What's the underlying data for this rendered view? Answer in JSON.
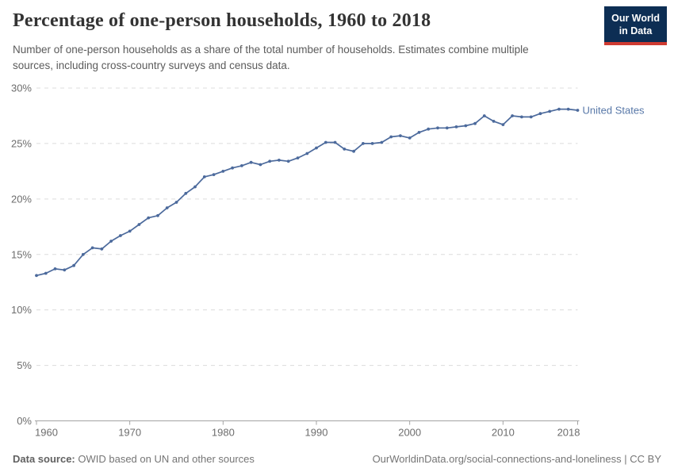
{
  "header": {
    "title": "Percentage of one-person households, 1960 to 2018",
    "subtitle": "Number of one-person households as a share of the total number of households. Estimates combine multiple sources, including cross-country surveys and census data.",
    "logo": {
      "line1": "Our World",
      "line2": "in Data"
    }
  },
  "chart_data": {
    "type": "line",
    "title": "Percentage of one-person households, 1960 to 2018",
    "xlabel": "",
    "ylabel": "",
    "ylim": [
      0,
      30
    ],
    "yticks": [
      0,
      5,
      10,
      15,
      20,
      25,
      30
    ],
    "ytick_suffix": "%",
    "xticks": [
      1960,
      1970,
      1980,
      1990,
      2000,
      2010,
      2018
    ],
    "xlim": [
      1960,
      2018
    ],
    "grid": "dashed-horizontal",
    "legend": "end-of-line-label",
    "series": [
      {
        "name": "United States",
        "color": "#4C6A9C",
        "label_color": "#5878a8",
        "x": [
          1960,
          1961,
          1962,
          1963,
          1964,
          1965,
          1966,
          1967,
          1968,
          1969,
          1970,
          1971,
          1972,
          1973,
          1974,
          1975,
          1976,
          1977,
          1978,
          1979,
          1980,
          1981,
          1982,
          1983,
          1984,
          1985,
          1986,
          1987,
          1988,
          1989,
          1990,
          1991,
          1992,
          1993,
          1994,
          1995,
          1996,
          1997,
          1998,
          1999,
          2000,
          2001,
          2002,
          2003,
          2004,
          2005,
          2006,
          2007,
          2008,
          2009,
          2010,
          2011,
          2012,
          2013,
          2014,
          2015,
          2016,
          2017,
          2018
        ],
        "values": [
          13.1,
          13.3,
          13.7,
          13.6,
          14.0,
          15.0,
          15.6,
          15.5,
          16.2,
          16.7,
          17.1,
          17.7,
          18.3,
          18.5,
          19.2,
          19.7,
          20.5,
          21.1,
          22.0,
          22.2,
          22.5,
          22.8,
          23.0,
          23.3,
          23.1,
          23.4,
          23.5,
          23.4,
          23.7,
          24.1,
          24.6,
          25.1,
          25.1,
          24.5,
          24.3,
          25.0,
          25.0,
          25.1,
          25.6,
          25.7,
          25.5,
          26.0,
          26.3,
          26.4,
          26.4,
          26.5,
          26.6,
          26.8,
          27.5,
          27.0,
          26.7,
          27.5,
          27.4,
          27.4,
          27.7,
          27.9,
          28.1,
          28.1,
          28.0
        ]
      }
    ],
    "colors": {
      "gridline": "#dcdcdc",
      "axis_line": "#a3a3a3",
      "tick_text": "#6d6d6d"
    }
  },
  "footer": {
    "source_label": "Data source:",
    "source_text": " OWID based on UN and other sources",
    "link": "OurWorldinData.org/social-connections-and-loneliness",
    "license": " | CC BY"
  }
}
